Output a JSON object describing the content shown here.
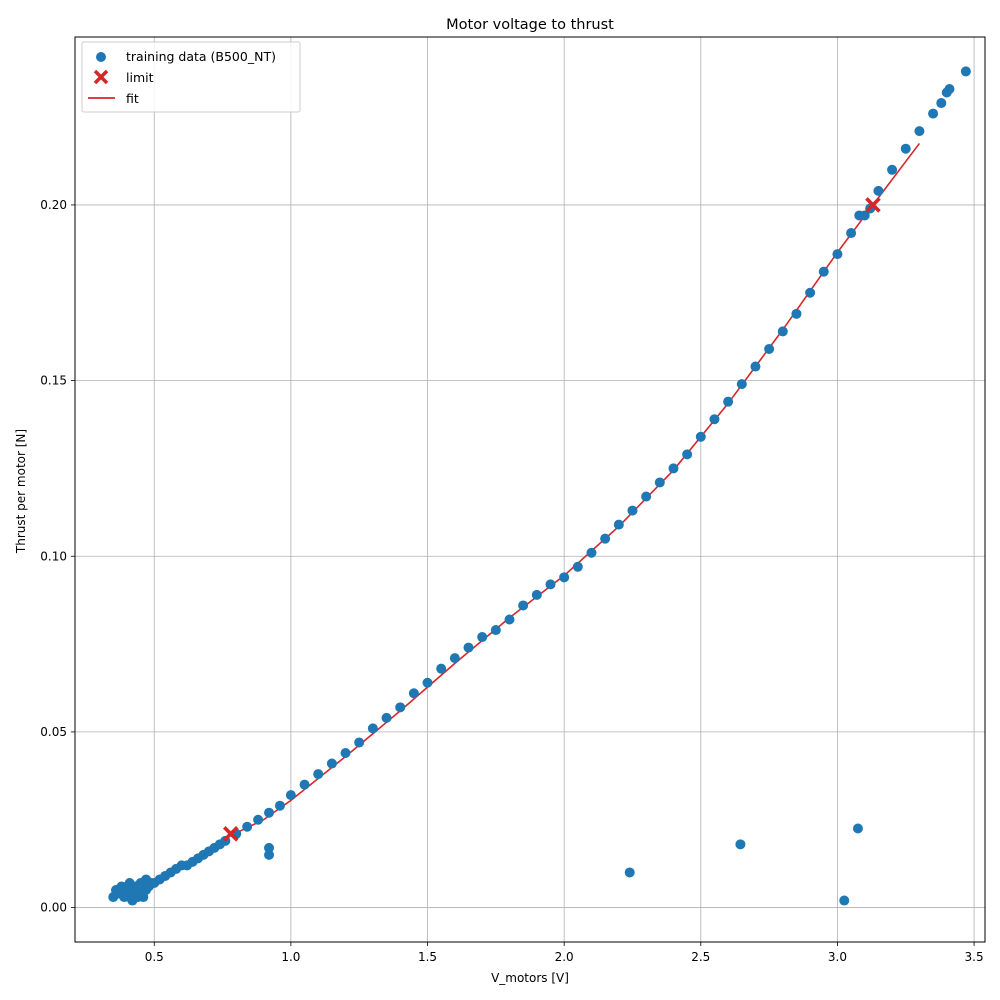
{
  "chart_data": {
    "type": "scatter",
    "title": "Motor voltage to thrust",
    "xlabel": "V_motors [V]",
    "ylabel": "Thrust per motor [N]",
    "xlim": [
      0.21,
      3.54
    ],
    "ylim": [
      -0.0098,
      0.2478
    ],
    "xticks": [
      0.5,
      1.0,
      1.5,
      2.0,
      2.5,
      3.0,
      3.5
    ],
    "xtick_labels": [
      "0.5",
      "1.0",
      "1.5",
      "2.0",
      "2.5",
      "3.0",
      "3.5"
    ],
    "yticks": [
      0.0,
      0.05,
      0.1,
      0.15,
      0.2
    ],
    "ytick_labels": [
      "0.00",
      "0.05",
      "0.10",
      "0.15",
      "0.20"
    ],
    "grid": true,
    "legend_position": "top-left",
    "colors": {
      "data": "#1f77b4",
      "limit": "#d62728",
      "fit": "#d62728"
    },
    "legend": [
      {
        "label": "training data (B500_NT)",
        "marker": "circle",
        "color": "#1f77b4"
      },
      {
        "label": "limit",
        "marker": "x",
        "color": "#d62728"
      },
      {
        "label": "fit",
        "marker": "line",
        "color": "#d62728"
      }
    ],
    "series": [
      {
        "name": "training data (B500_NT)",
        "kind": "scatter",
        "points": [
          [
            0.35,
            0.003
          ],
          [
            0.36,
            0.005
          ],
          [
            0.37,
            0.004
          ],
          [
            0.38,
            0.006
          ],
          [
            0.39,
            0.003
          ],
          [
            0.39,
            0.005
          ],
          [
            0.4,
            0.004
          ],
          [
            0.4,
            0.006
          ],
          [
            0.41,
            0.003
          ],
          [
            0.41,
            0.007
          ],
          [
            0.42,
            0.005
          ],
          [
            0.42,
            0.002
          ],
          [
            0.43,
            0.004
          ],
          [
            0.43,
            0.006
          ],
          [
            0.44,
            0.003
          ],
          [
            0.44,
            0.005
          ],
          [
            0.45,
            0.007
          ],
          [
            0.45,
            0.004
          ],
          [
            0.46,
            0.006
          ],
          [
            0.46,
            0.003
          ],
          [
            0.47,
            0.005
          ],
          [
            0.47,
            0.008
          ],
          [
            0.48,
            0.006
          ],
          [
            0.49,
            0.007
          ],
          [
            0.5,
            0.007
          ],
          [
            0.52,
            0.008
          ],
          [
            0.54,
            0.009
          ],
          [
            0.56,
            0.01
          ],
          [
            0.58,
            0.011
          ],
          [
            0.6,
            0.012
          ],
          [
            0.62,
            0.012
          ],
          [
            0.64,
            0.013
          ],
          [
            0.66,
            0.014
          ],
          [
            0.68,
            0.015
          ],
          [
            0.7,
            0.016
          ],
          [
            0.72,
            0.017
          ],
          [
            0.74,
            0.018
          ],
          [
            0.76,
            0.019
          ],
          [
            0.8,
            0.021
          ],
          [
            0.84,
            0.023
          ],
          [
            0.88,
            0.025
          ],
          [
            0.92,
            0.027
          ],
          [
            0.92,
            0.015
          ],
          [
            0.92,
            0.017
          ],
          [
            0.96,
            0.029
          ],
          [
            1.0,
            0.032
          ],
          [
            1.05,
            0.035
          ],
          [
            1.1,
            0.038
          ],
          [
            1.15,
            0.041
          ],
          [
            1.2,
            0.044
          ],
          [
            1.25,
            0.047
          ],
          [
            1.3,
            0.051
          ],
          [
            1.35,
            0.054
          ],
          [
            1.4,
            0.057
          ],
          [
            1.45,
            0.061
          ],
          [
            1.5,
            0.064
          ],
          [
            1.55,
            0.068
          ],
          [
            1.6,
            0.071
          ],
          [
            1.65,
            0.074
          ],
          [
            1.7,
            0.077
          ],
          [
            1.75,
            0.079
          ],
          [
            1.8,
            0.082
          ],
          [
            1.85,
            0.086
          ],
          [
            1.9,
            0.089
          ],
          [
            1.95,
            0.092
          ],
          [
            2.0,
            0.094
          ],
          [
            2.05,
            0.097
          ],
          [
            2.1,
            0.101
          ],
          [
            2.15,
            0.105
          ],
          [
            2.2,
            0.109
          ],
          [
            2.25,
            0.113
          ],
          [
            2.3,
            0.117
          ],
          [
            2.35,
            0.121
          ],
          [
            2.4,
            0.125
          ],
          [
            2.45,
            0.129
          ],
          [
            2.5,
            0.134
          ],
          [
            2.55,
            0.139
          ],
          [
            2.6,
            0.144
          ],
          [
            2.65,
            0.149
          ],
          [
            2.7,
            0.154
          ],
          [
            2.75,
            0.159
          ],
          [
            2.8,
            0.164
          ],
          [
            2.85,
            0.169
          ],
          [
            2.9,
            0.175
          ],
          [
            2.95,
            0.181
          ],
          [
            3.0,
            0.186
          ],
          [
            3.05,
            0.192
          ],
          [
            3.08,
            0.197
          ],
          [
            3.1,
            0.197
          ],
          [
            3.12,
            0.199
          ],
          [
            3.15,
            0.204
          ],
          [
            3.2,
            0.21
          ],
          [
            3.25,
            0.216
          ],
          [
            3.3,
            0.221
          ],
          [
            3.35,
            0.226
          ],
          [
            3.38,
            0.229
          ],
          [
            3.4,
            0.232
          ],
          [
            3.41,
            0.233
          ],
          [
            3.47,
            0.238
          ],
          [
            2.24,
            0.01
          ],
          [
            2.645,
            0.018
          ],
          [
            3.025,
            0.002
          ],
          [
            3.075,
            0.0225
          ]
        ]
      },
      {
        "name": "fit",
        "kind": "line",
        "points": [
          [
            0.78,
            0.0205
          ],
          [
            0.9,
            0.025
          ],
          [
            1.0,
            0.0305
          ],
          [
            1.2,
            0.043
          ],
          [
            1.4,
            0.056
          ],
          [
            1.6,
            0.0695
          ],
          [
            1.8,
            0.0825
          ],
          [
            2.0,
            0.0945
          ],
          [
            2.2,
            0.1085
          ],
          [
            2.4,
            0.1245
          ],
          [
            2.6,
            0.1435
          ],
          [
            2.8,
            0.1645
          ],
          [
            3.0,
            0.1865
          ],
          [
            3.13,
            0.2
          ],
          [
            3.3,
            0.2175
          ]
        ]
      },
      {
        "name": "limit",
        "kind": "marker-x",
        "points": [
          [
            0.78,
            0.021
          ],
          [
            3.13,
            0.2
          ]
        ]
      }
    ]
  }
}
